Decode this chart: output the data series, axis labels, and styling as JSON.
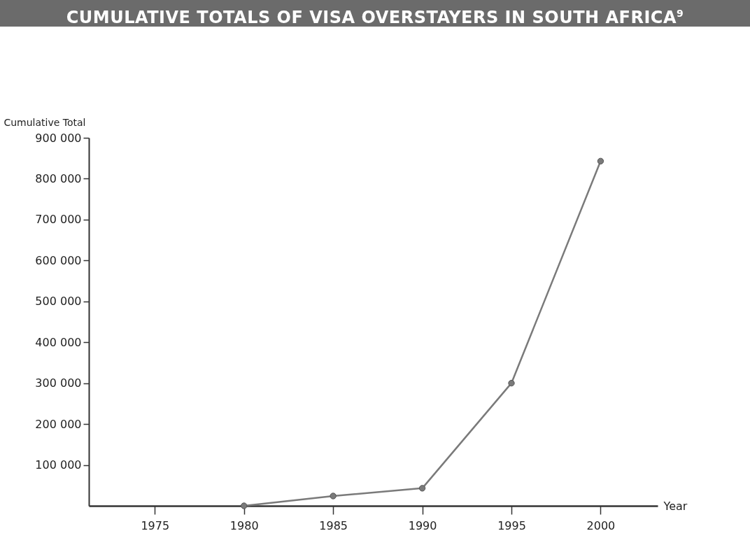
{
  "chart_data": {
    "type": "line",
    "title": "CUMULATIVE TOTALS OF VISA OVERSTAYERS IN SOUTH AFRICA$^{9}$",
    "xlabel": "Year",
    "ylabel": "Cumulative Total",
    "x": [
      1980,
      1985,
      1990,
      1995,
      2000
    ],
    "series": [
      {
        "color": "#7a7a7a",
        "values": [
          0,
          24000,
          43000,
          300000,
          843000
        ]
      }
    ],
    "xlim": [
      1971.3,
      2003.2
    ],
    "xticks": [
      1975,
      1980,
      1985,
      1990,
      1995,
      2000
    ],
    "ylim": [
      0,
      900000
    ],
    "yticks": [
      {
        "value": 100000,
        "label": "100 000"
      },
      {
        "value": 200000,
        "label": "200 000"
      },
      {
        "value": 300000,
        "label": "300 000"
      },
      {
        "value": 400000,
        "label": "400 000"
      },
      {
        "value": 500000,
        "label": "500 000"
      },
      {
        "value": 600000,
        "label": "600 000"
      },
      {
        "value": 700000,
        "label": "700 000"
      },
      {
        "value": 800000,
        "label": "800 000"
      },
      {
        "value": 900000,
        "label": "900 000"
      }
    ],
    "grid": false,
    "marker": "circle",
    "line_style": "solid",
    "legend": false
  }
}
